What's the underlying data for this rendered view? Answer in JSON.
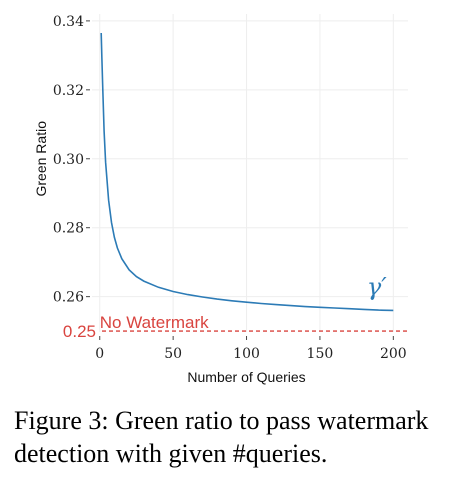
{
  "chart_data": {
    "type": "line",
    "x": [
      1,
      1.5,
      2,
      3,
      4,
      6,
      8,
      10,
      12,
      15,
      20,
      25,
      30,
      40,
      50,
      60,
      70,
      80,
      90,
      100,
      110,
      120,
      130,
      140,
      150,
      160,
      170,
      180,
      190,
      200
    ],
    "y": [
      0.3365,
      0.329,
      0.321,
      0.308,
      0.299,
      0.288,
      0.2815,
      0.2772,
      0.2741,
      0.271,
      0.2678,
      0.2658,
      0.2645,
      0.2627,
      0.2615,
      0.2606,
      0.2599,
      0.2593,
      0.2588,
      0.2584,
      0.258,
      0.2577,
      0.2574,
      0.2571,
      0.2569,
      0.2567,
      0.2565,
      0.2563,
      0.2561,
      0.256
    ],
    "series_label": "γ′",
    "series_color": "#2c7bb6",
    "baseline": {
      "value": 0.25,
      "value_label": "0.25",
      "label": "No Watermark",
      "color": "#d9443f"
    },
    "xlabel": "Number of Queries",
    "ylabel": "Green Ratio",
    "xticks": [
      0,
      50,
      100,
      150,
      200
    ],
    "xtick_labels": [
      "0",
      "50",
      "100",
      "150",
      "200"
    ],
    "yticks": [
      0.26,
      0.28,
      0.3,
      0.32,
      0.34
    ],
    "ytick_labels": [
      "0.26",
      "0.28",
      "0.30",
      "0.32",
      "0.34"
    ],
    "xlim": [
      -8,
      210
    ],
    "ylim": [
      0.248,
      0.342
    ],
    "grid": true
  },
  "caption": "Figure 3: Green ratio to pass watermark detection with given #queries."
}
